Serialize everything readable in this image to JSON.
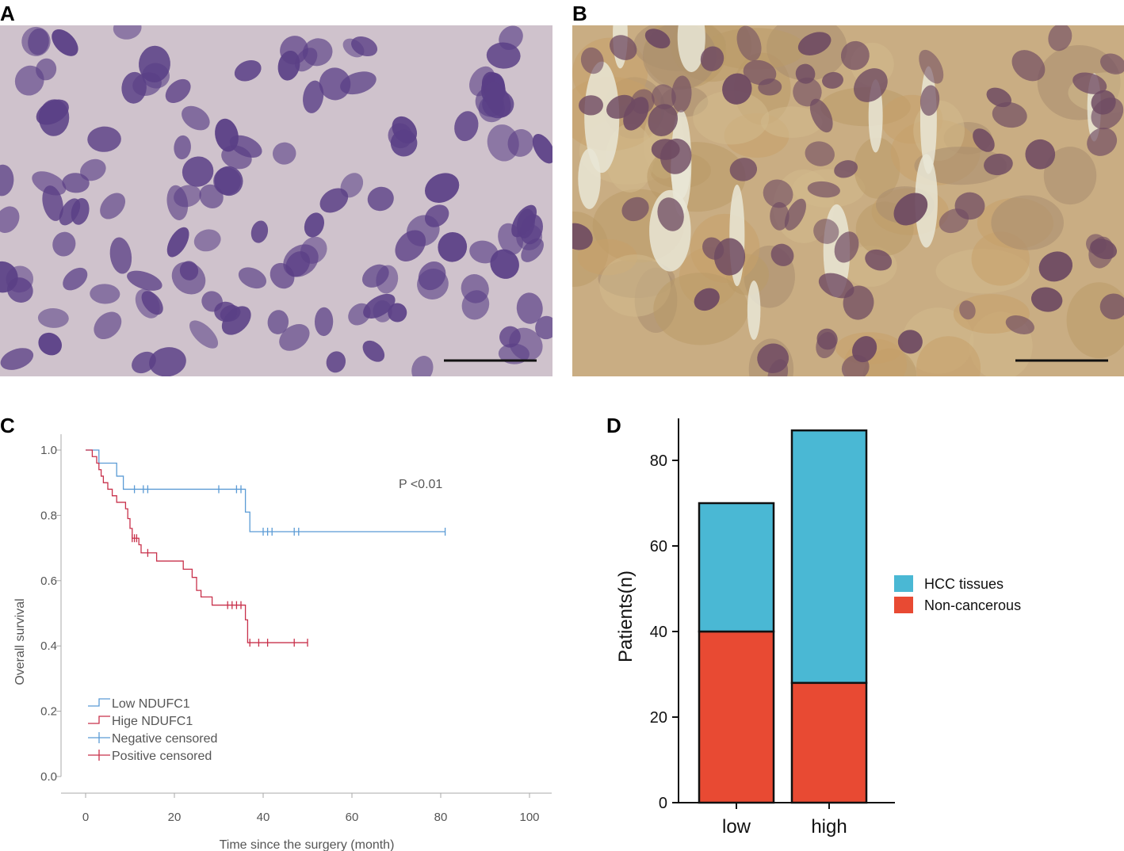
{
  "panels": {
    "a": "A",
    "b": "B",
    "c": "C",
    "d": "D"
  },
  "images": {
    "a": {
      "stain": "hematoxylin",
      "background": "#cfc2cc",
      "nucleus": "#5a3f86",
      "scale_bar": true
    },
    "b": {
      "stain": "DAB brown",
      "background": "#c9ad83",
      "nucleus": "#6e4a62",
      "scale_bar": true
    }
  },
  "chart_data": [
    {
      "type": "line",
      "panel": "C",
      "title": "",
      "xlabel": "Time since the surgery (month)",
      "ylabel": "Overall survival",
      "xlim": [
        0,
        100
      ],
      "ylim": [
        0,
        1
      ],
      "xticks": [
        "0",
        "20",
        "40",
        "60",
        "80",
        "100"
      ],
      "yticks": [
        "0.0",
        "0.2",
        "0.4",
        "0.6",
        "0.8",
        "1.0"
      ],
      "annotation": "P <0.01",
      "legend": {
        "placement": "bottom-left",
        "entries": [
          "Low NDUFC1",
          "Hige NDUFC1",
          "Negative censored",
          "Positive censored"
        ]
      },
      "series": [
        {
          "name": "Low NDUFC1",
          "color": "#5b9bd5",
          "steps": [
            [
              0,
              1.0
            ],
            [
              3,
              0.96
            ],
            [
              7,
              0.92
            ],
            [
              8.5,
              0.88
            ],
            [
              36,
              0.81
            ],
            [
              37,
              0.75
            ],
            [
              81,
              0.75
            ]
          ],
          "censored": [
            [
              11,
              0.88
            ],
            [
              13,
              0.88
            ],
            [
              14,
              0.88
            ],
            [
              30,
              0.88
            ],
            [
              34,
              0.88
            ],
            [
              35,
              0.88
            ],
            [
              40,
              0.75
            ],
            [
              41,
              0.75
            ],
            [
              42,
              0.75
            ],
            [
              47,
              0.75
            ],
            [
              48,
              0.75
            ],
            [
              81,
              0.75
            ]
          ]
        },
        {
          "name": "Hige NDUFC1",
          "color": "#c8314b",
          "steps": [
            [
              0,
              1.0
            ],
            [
              1.5,
              0.98
            ],
            [
              2.5,
              0.96
            ],
            [
              3,
              0.94
            ],
            [
              3.5,
              0.92
            ],
            [
              4,
              0.9
            ],
            [
              5,
              0.88
            ],
            [
              6,
              0.86
            ],
            [
              7,
              0.84
            ],
            [
              9,
              0.82
            ],
            [
              9.5,
              0.79
            ],
            [
              10,
              0.76
            ],
            [
              10.5,
              0.73
            ],
            [
              12,
              0.71
            ],
            [
              12.5,
              0.685
            ],
            [
              16,
              0.66
            ],
            [
              22,
              0.635
            ],
            [
              24,
              0.61
            ],
            [
              25,
              0.57
            ],
            [
              26,
              0.55
            ],
            [
              28.5,
              0.525
            ],
            [
              36,
              0.48
            ],
            [
              36.5,
              0.41
            ],
            [
              50,
              0.41
            ]
          ],
          "censored": [
            [
              10.5,
              0.73
            ],
            [
              11,
              0.73
            ],
            [
              11.5,
              0.73
            ],
            [
              14,
              0.685
            ],
            [
              32,
              0.525
            ],
            [
              33,
              0.525
            ],
            [
              34,
              0.525
            ],
            [
              35,
              0.525
            ],
            [
              37,
              0.41
            ],
            [
              39,
              0.41
            ],
            [
              41,
              0.41
            ],
            [
              47,
              0.41
            ],
            [
              50,
              0.41
            ]
          ]
        }
      ]
    },
    {
      "type": "bar",
      "stacked": true,
      "panel": "D",
      "title": "",
      "xlabel": "",
      "ylabel": "Patients(n)",
      "categories": [
        "low",
        "high"
      ],
      "ylim": [
        0,
        90
      ],
      "yticks": [
        "0",
        "20",
        "40",
        "60",
        "80"
      ],
      "legend": {
        "placement": "right"
      },
      "series": [
        {
          "name": "Non-cancerous",
          "color": "#e84a33",
          "values": [
            40,
            28
          ]
        },
        {
          "name": "HCC tissues",
          "color": "#4ab8d4",
          "values": [
            30,
            59
          ]
        }
      ]
    }
  ]
}
